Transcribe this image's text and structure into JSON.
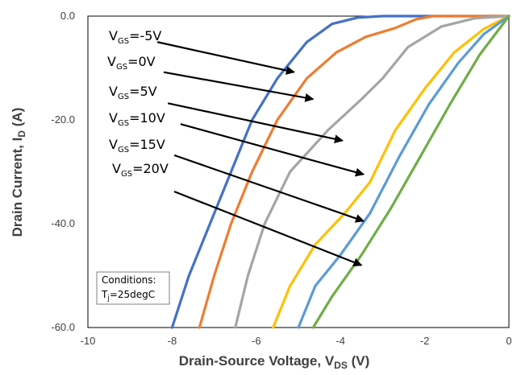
{
  "chart_data": {
    "type": "line",
    "xlabel": "Drain-Source Voltage, V",
    "xlabel_sub": "DS",
    "xlabel_unit": " (V)",
    "ylabel": "Drain Current, I",
    "ylabel_sub": "D",
    "ylabel_unit": " (A)",
    "xlim": [
      -10,
      0
    ],
    "ylim": [
      -60,
      0
    ],
    "x_ticks": [
      -10,
      -8,
      -6,
      -4,
      -2,
      0
    ],
    "y_ticks": [
      0,
      -20,
      -40,
      -60
    ],
    "y_tick_labels": [
      "0.0",
      "-20.0",
      "-40.0",
      "-60.0"
    ],
    "grid": false,
    "series": [
      {
        "vgs": "-5V",
        "color": "#4472C4",
        "points": [
          [
            -8.0,
            -60
          ],
          [
            -7.6,
            -50
          ],
          [
            -7.1,
            -40
          ],
          [
            -6.6,
            -30
          ],
          [
            -6.1,
            -20
          ],
          [
            -5.5,
            -12
          ],
          [
            -4.8,
            -5
          ],
          [
            -4.2,
            -1.5
          ],
          [
            -3.6,
            -0.3
          ],
          [
            -3.0,
            0
          ],
          [
            0,
            0
          ]
        ]
      },
      {
        "vgs": "0V",
        "color": "#ED7D31",
        "points": [
          [
            -7.35,
            -60
          ],
          [
            -7.0,
            -50
          ],
          [
            -6.6,
            -40
          ],
          [
            -6.1,
            -30
          ],
          [
            -5.5,
            -20
          ],
          [
            -4.8,
            -12
          ],
          [
            -4.1,
            -7
          ],
          [
            -3.4,
            -4
          ],
          [
            -2.7,
            -2.3
          ],
          [
            -2.2,
            -0.6
          ],
          [
            -1.8,
            0
          ],
          [
            0,
            0
          ]
        ]
      },
      {
        "vgs": "5V",
        "color": "#A5A5A5",
        "points": [
          [
            -6.5,
            -60
          ],
          [
            -6.2,
            -50
          ],
          [
            -5.8,
            -40
          ],
          [
            -5.2,
            -30
          ],
          [
            -4.3,
            -22
          ],
          [
            -3.5,
            -16
          ],
          [
            -3.0,
            -12
          ],
          [
            -2.4,
            -6
          ],
          [
            -1.6,
            -2
          ],
          [
            -0.8,
            -0.4
          ],
          [
            0,
            0
          ]
        ]
      },
      {
        "vgs": "10V",
        "color": "#FFC000",
        "points": [
          [
            -5.6,
            -60
          ],
          [
            -5.2,
            -52
          ],
          [
            -4.6,
            -44
          ],
          [
            -3.9,
            -38
          ],
          [
            -3.3,
            -32
          ],
          [
            -2.7,
            -22
          ],
          [
            -2.0,
            -14
          ],
          [
            -1.3,
            -7
          ],
          [
            -0.6,
            -2.5
          ],
          [
            0,
            0
          ]
        ]
      },
      {
        "vgs": "15V",
        "color": "#5B9BD5",
        "points": [
          [
            -5.0,
            -60
          ],
          [
            -4.6,
            -52
          ],
          [
            -4.0,
            -46
          ],
          [
            -3.3,
            -38
          ],
          [
            -2.6,
            -27
          ],
          [
            -1.9,
            -17
          ],
          [
            -1.2,
            -9
          ],
          [
            -0.6,
            -3.5
          ],
          [
            0,
            0
          ]
        ]
      },
      {
        "vgs": "20V",
        "color": "#70AD47",
        "points": [
          [
            -4.65,
            -60
          ],
          [
            -4.2,
            -54
          ],
          [
            -3.5,
            -46
          ],
          [
            -2.8,
            -37
          ],
          [
            -2.1,
            -27
          ],
          [
            -1.4,
            -17
          ],
          [
            -0.7,
            -7.5
          ],
          [
            0,
            0
          ]
        ]
      }
    ],
    "annotations": [
      {
        "label": "V",
        "sub": "GS",
        "value": "=-5V",
        "from": [
          -8.35,
          -5.0
        ],
        "to": [
          -5.1,
          -10.8
        ]
      },
      {
        "label": "V",
        "sub": "GS",
        "value": "=0V",
        "from": [
          -8.2,
          -10.8
        ],
        "to": [
          -4.65,
          -16.0
        ]
      },
      {
        "label": "V",
        "sub": "GS",
        "value": "=5V",
        "from": [
          -8.1,
          -16.8
        ],
        "to": [
          -3.95,
          -24.0
        ]
      },
      {
        "label": "V",
        "sub": "GS",
        "value": "=10V",
        "from": [
          -7.8,
          -20.8
        ],
        "to": [
          -3.45,
          -30.5
        ]
      },
      {
        "label": "V",
        "sub": "GS",
        "value": "=15V",
        "from": [
          -7.95,
          -26.8
        ],
        "to": [
          -3.45,
          -39.5
        ]
      },
      {
        "label": "V",
        "sub": "GS",
        "value": "=20V",
        "from": [
          -7.95,
          -33.8
        ],
        "to": [
          -3.5,
          -48.0
        ]
      }
    ],
    "conditions": {
      "title": "Conditions:",
      "line_main": "T",
      "line_sub": "j",
      "line_rest": "=25degC"
    }
  }
}
